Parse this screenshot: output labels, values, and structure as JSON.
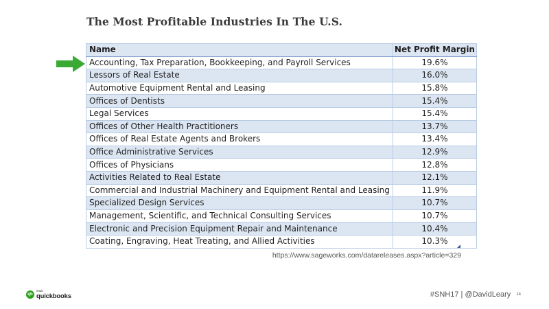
{
  "slide": {
    "title": "The Most Profitable Industries In The U.S.",
    "source_url": "https://www.sageworks.com/datareleases.aspx?article=329",
    "footer_handle": "#SNH17 | @DavidLeary",
    "page_number": "14"
  },
  "logo": {
    "small": "intuit",
    "big": "quickbooks",
    "mark": "qb",
    "color": "#2ca01c"
  },
  "highlight_arrow": {
    "color": "#3aaa35",
    "icon": "arrow-right-icon"
  },
  "table": {
    "headers": [
      "Name",
      "Net Profit Margin"
    ],
    "rows": [
      {
        "name": "Accounting, Tax Preparation, Bookkeeping, and Payroll Services",
        "margin": "19.6%"
      },
      {
        "name": "Lessors of Real Estate",
        "margin": "16.0%"
      },
      {
        "name": "Automotive Equipment Rental and Leasing",
        "margin": "15.8%"
      },
      {
        "name": "Offices of Dentists",
        "margin": "15.4%"
      },
      {
        "name": "Legal Services",
        "margin": "15.4%"
      },
      {
        "name": "Offices of Other Health Practitioners",
        "margin": "13.7%"
      },
      {
        "name": "Offices of Real Estate Agents and Brokers",
        "margin": "13.4%"
      },
      {
        "name": "Office Administrative Services",
        "margin": "12.9%"
      },
      {
        "name": "Offices of Physicians",
        "margin": "12.8%"
      },
      {
        "name": "Activities Related to Real Estate",
        "margin": "12.1%"
      },
      {
        "name": "Commercial and Industrial Machinery and Equipment Rental and Leasing",
        "margin": "11.9%"
      },
      {
        "name": "Specialized Design Services",
        "margin": "10.7%"
      },
      {
        "name": "Management, Scientific, and Technical Consulting Services",
        "margin": "10.7%"
      },
      {
        "name": "Electronic and Precision Equipment Repair and Maintenance",
        "margin": "10.4%"
      },
      {
        "name": "Coating, Engraving, Heat Treating, and Allied Activities",
        "margin": "10.3%"
      }
    ]
  }
}
